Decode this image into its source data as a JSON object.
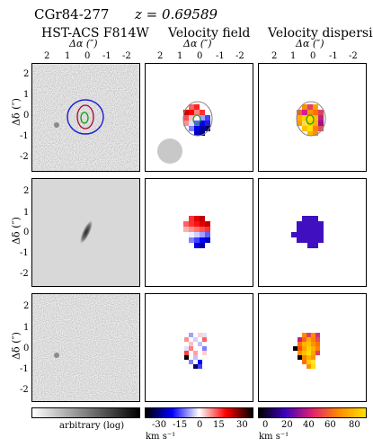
{
  "header": {
    "object_name": "CGr84-277",
    "redshift": "z = 0.69589"
  },
  "columns": [
    {
      "title": "HST-ACS F814W",
      "xlabel": "Δα (″)"
    },
    {
      "title": "Velocity field",
      "xlabel": "Δα (″)"
    },
    {
      "title": "Velocity dispersion",
      "xlabel": "Δα (″)"
    }
  ],
  "axes": {
    "x_ticks": [
      "2",
      "1",
      "0",
      "-1",
      "-2"
    ],
    "y_ticks": [
      "2",
      "1",
      "0",
      "-1",
      "-2"
    ],
    "ylabel": "Δδ (″)"
  },
  "colorbars": {
    "image": {
      "label": "arbitrary (log)",
      "colors": [
        "#ffffff",
        "#000000"
      ]
    },
    "velocity": {
      "ticks": [
        "-30",
        "-15",
        "0",
        "15",
        "30"
      ],
      "unit": "km s⁻¹",
      "colors": [
        "#000000",
        "#0000ff",
        "#ffffff",
        "#ff0000",
        "#000000"
      ]
    },
    "dispersion": {
      "ticks": [
        "0",
        "20",
        "40",
        "60",
        "80"
      ],
      "unit": "km s⁻¹",
      "colors": [
        "#000000",
        "#3f00c0",
        "#e02070",
        "#ff8c00",
        "#ffe000"
      ]
    }
  },
  "colors": {
    "contour_blue": "#1f1fd0",
    "contour_red": "#c00000",
    "contour_green": "#10a010",
    "beam": "#c8c8c8"
  }
}
